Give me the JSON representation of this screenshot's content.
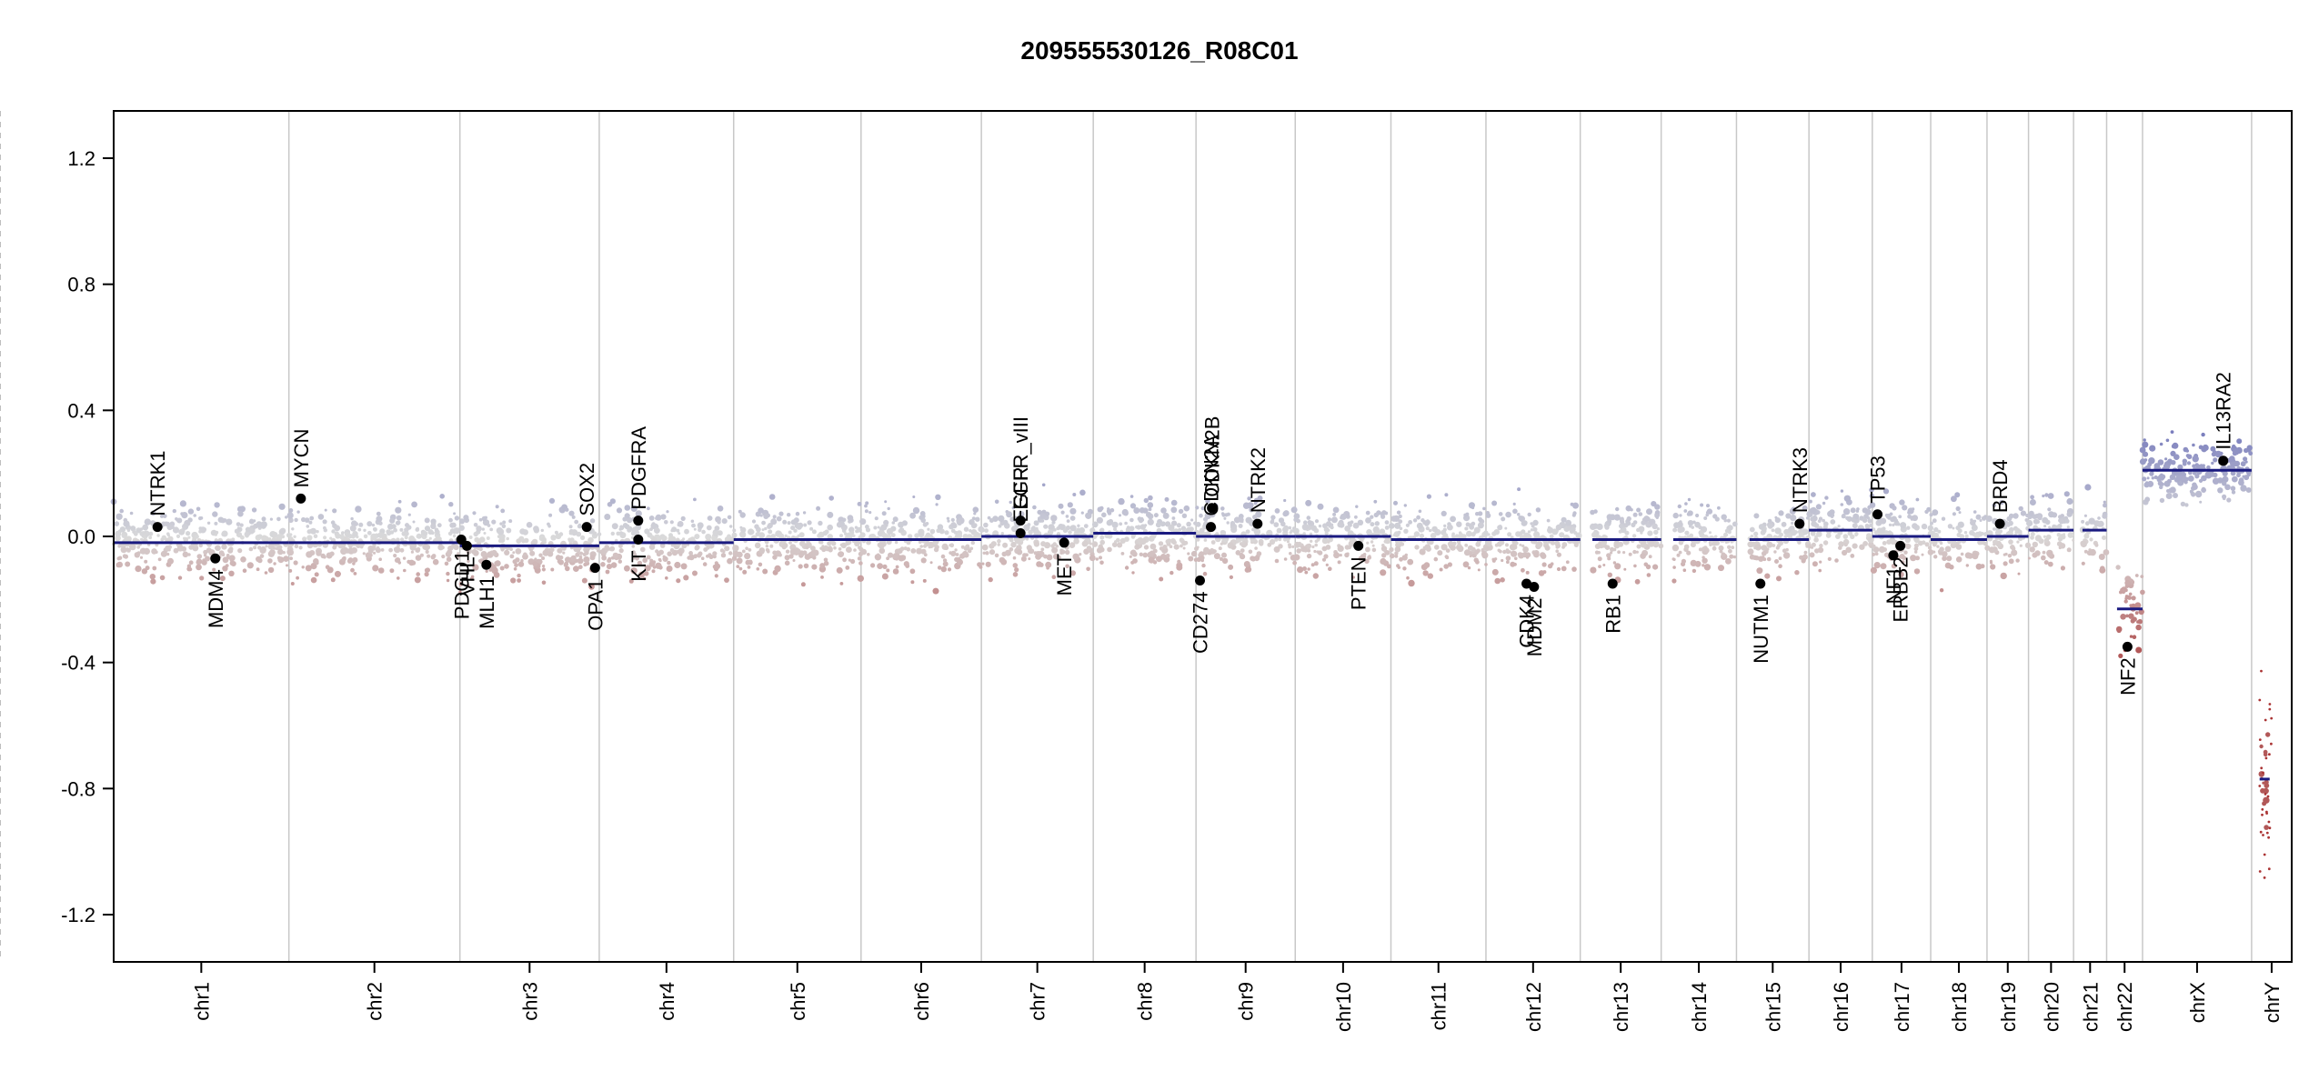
{
  "chart_data": {
    "type": "scatter",
    "title": "209555530126_R08C01",
    "xlabel": "",
    "ylabel": "",
    "ylim": [
      -1.35,
      1.35
    ],
    "y_ticks": [
      1.2,
      0.8,
      0.4,
      0.0,
      -0.4,
      -0.8,
      -1.2
    ],
    "y_tick_labels": [
      "1.2",
      "0.8",
      "0.4",
      "0.0",
      "-0.4",
      "-0.8",
      "-1.2"
    ],
    "colors": {
      "gain": "#8a8cc0",
      "loss": "#b56a6a",
      "neutral": "#d9d9d9",
      "segment": "#1a1a80",
      "gene_point": "#000000",
      "boundary": "#c8c8c8",
      "centromere": "#bdbdbd"
    },
    "chromosomes": [
      {
        "name": "chr1",
        "length": 249,
        "centromere": 0.5
      },
      {
        "name": "chr2",
        "length": 243,
        "centromere": 0.38
      },
      {
        "name": "chr3",
        "length": 198,
        "centromere": 0.46
      },
      {
        "name": "chr4",
        "length": 191,
        "centromere": 0.26
      },
      {
        "name": "chr5",
        "length": 181,
        "centromere": 0.27
      },
      {
        "name": "chr6",
        "length": 171,
        "centromere": 0.35
      },
      {
        "name": "chr7",
        "length": 159,
        "centromere": 0.38
      },
      {
        "name": "chr8",
        "length": 146,
        "centromere": 0.3
      },
      {
        "name": "chr9",
        "length": 141,
        "centromere": 0.35
      },
      {
        "name": "chr10",
        "length": 136,
        "centromere": 0.29
      },
      {
        "name": "chr11",
        "length": 135,
        "centromere": 0.39
      },
      {
        "name": "chr12",
        "length": 134,
        "centromere": 0.27
      },
      {
        "name": "chr13",
        "length": 115,
        "centromere": 0.15
      },
      {
        "name": "chr14",
        "length": 107,
        "centromere": 0.16
      },
      {
        "name": "chr15",
        "length": 103,
        "centromere": 0.18
      },
      {
        "name": "chr16",
        "length": 90,
        "centromere": 0.41
      },
      {
        "name": "chr17",
        "length": 83,
        "centromere": 0.3
      },
      {
        "name": "chr18",
        "length": 80,
        "centromere": 0.22
      },
      {
        "name": "chr19",
        "length": 59,
        "centromere": 0.44
      },
      {
        "name": "chr20",
        "length": 64,
        "centromere": 0.44
      },
      {
        "name": "chr21",
        "length": 47,
        "centromere": 0.27
      },
      {
        "name": "chr22",
        "length": 51,
        "centromere": 0.29
      },
      {
        "name": "chrX",
        "length": 155,
        "centromere": 0.39
      },
      {
        "name": "chrY",
        "length": 57,
        "centromere": 0.18
      }
    ],
    "segments": [
      {
        "chr": "chr1",
        "start": 0.0,
        "end": 1.0,
        "value": -0.02
      },
      {
        "chr": "chr2",
        "start": 0.0,
        "end": 1.0,
        "value": -0.02
      },
      {
        "chr": "chr3",
        "start": 0.0,
        "end": 1.0,
        "value": -0.03
      },
      {
        "chr": "chr4",
        "start": 0.0,
        "end": 1.0,
        "value": -0.02
      },
      {
        "chr": "chr5",
        "start": 0.0,
        "end": 1.0,
        "value": -0.01
      },
      {
        "chr": "chr6",
        "start": 0.0,
        "end": 1.0,
        "value": -0.01
      },
      {
        "chr": "chr7",
        "start": 0.0,
        "end": 1.0,
        "value": 0.0
      },
      {
        "chr": "chr8",
        "start": 0.0,
        "end": 1.0,
        "value": 0.01
      },
      {
        "chr": "chr9",
        "start": 0.0,
        "end": 1.0,
        "value": 0.0
      },
      {
        "chr": "chr10",
        "start": 0.0,
        "end": 1.0,
        "value": 0.0
      },
      {
        "chr": "chr11",
        "start": 0.0,
        "end": 1.0,
        "value": -0.01
      },
      {
        "chr": "chr12",
        "start": 0.0,
        "end": 1.0,
        "value": -0.01
      },
      {
        "chr": "chr13",
        "start": 0.15,
        "end": 1.0,
        "value": -0.01
      },
      {
        "chr": "chr14",
        "start": 0.16,
        "end": 1.0,
        "value": -0.01
      },
      {
        "chr": "chr15",
        "start": 0.18,
        "end": 1.0,
        "value": -0.01
      },
      {
        "chr": "chr16",
        "start": 0.0,
        "end": 1.0,
        "value": 0.02
      },
      {
        "chr": "chr17",
        "start": 0.0,
        "end": 1.0,
        "value": 0.0
      },
      {
        "chr": "chr18",
        "start": 0.0,
        "end": 1.0,
        "value": -0.01
      },
      {
        "chr": "chr19",
        "start": 0.0,
        "end": 1.0,
        "value": 0.0
      },
      {
        "chr": "chr20",
        "start": 0.0,
        "end": 1.0,
        "value": 0.02
      },
      {
        "chr": "chr21",
        "start": 0.27,
        "end": 1.0,
        "value": 0.02
      },
      {
        "chr": "chr22",
        "start": 0.29,
        "end": 1.0,
        "value": -0.23
      },
      {
        "chr": "chrX",
        "start": 0.0,
        "end": 1.0,
        "value": 0.21
      },
      {
        "chr": "chrY",
        "start": 0.2,
        "end": 0.45,
        "value": -0.77
      }
    ],
    "genes": [
      {
        "name": "NTRK1",
        "chr": "chr1",
        "pos": 0.25,
        "value": 0.03,
        "label_side": "above"
      },
      {
        "name": "MDM4",
        "chr": "chr1",
        "pos": 0.58,
        "value": -0.07,
        "label_side": "below"
      },
      {
        "name": "MYCN",
        "chr": "chr2",
        "pos": 0.07,
        "value": 0.12,
        "label_side": "above"
      },
      {
        "name": "PDGD1",
        "chr": "chr3",
        "pos": 0.01,
        "value": -0.01,
        "label_side": "below"
      },
      {
        "name": "VHL",
        "chr": "chr3",
        "pos": 0.05,
        "value": -0.03,
        "label_side": "below"
      },
      {
        "name": "MLH1",
        "chr": "chr3",
        "pos": 0.19,
        "value": -0.09,
        "label_side": "below"
      },
      {
        "name": "SOX2",
        "chr": "chr3",
        "pos": 0.91,
        "value": 0.03,
        "label_side": "above"
      },
      {
        "name": "OPA1",
        "chr": "chr3",
        "pos": 0.97,
        "value": -0.1,
        "label_side": "below"
      },
      {
        "name": "PDGFRA",
        "chr": "chr4",
        "pos": 0.29,
        "value": 0.05,
        "label_side": "above"
      },
      {
        "name": "KIT",
        "chr": "chr4",
        "pos": 0.29,
        "value": -0.01,
        "label_side": "below"
      },
      {
        "name": "EGFR_vIII",
        "chr": "chr7",
        "pos": 0.35,
        "value": 0.05,
        "label_side": "above"
      },
      {
        "name": "EGFR",
        "chr": "chr7",
        "pos": 0.35,
        "value": 0.01,
        "label_side": "above"
      },
      {
        "name": "MET",
        "chr": "chr7",
        "pos": 0.74,
        "value": -0.02,
        "label_side": "below"
      },
      {
        "name": "CDKN2A",
        "chr": "chr9",
        "pos": 0.15,
        "value": 0.03,
        "label_side": "above"
      },
      {
        "name": "CDKN2B",
        "chr": "chr9",
        "pos": 0.16,
        "value": 0.09,
        "label_side": "above"
      },
      {
        "name": "CD274",
        "chr": "chr9",
        "pos": 0.04,
        "value": -0.14,
        "label_side": "below"
      },
      {
        "name": "NTRK2",
        "chr": "chr9",
        "pos": 0.62,
        "value": 0.04,
        "label_side": "above"
      },
      {
        "name": "PTEN",
        "chr": "chr10",
        "pos": 0.66,
        "value": -0.03,
        "label_side": "below"
      },
      {
        "name": "CDK4",
        "chr": "chr12",
        "pos": 0.43,
        "value": -0.15,
        "label_side": "below"
      },
      {
        "name": "MDM2",
        "chr": "chr12",
        "pos": 0.51,
        "value": -0.16,
        "label_side": "below"
      },
      {
        "name": "RB1",
        "chr": "chr13",
        "pos": 0.4,
        "value": -0.15,
        "label_side": "below"
      },
      {
        "name": "NUTM1",
        "chr": "chr15",
        "pos": 0.33,
        "value": -0.15,
        "label_side": "below"
      },
      {
        "name": "NTRK3",
        "chr": "chr15",
        "pos": 0.87,
        "value": 0.04,
        "label_side": "above"
      },
      {
        "name": "TP53",
        "chr": "chr17",
        "pos": 0.09,
        "value": 0.07,
        "label_side": "above"
      },
      {
        "name": "NF1",
        "chr": "chr17",
        "pos": 0.36,
        "value": -0.06,
        "label_side": "below"
      },
      {
        "name": "ERBB2",
        "chr": "chr17",
        "pos": 0.48,
        "value": -0.03,
        "label_side": "below"
      },
      {
        "name": "BRD4",
        "chr": "chr19",
        "pos": 0.31,
        "value": 0.04,
        "label_side": "above"
      },
      {
        "name": "NF2",
        "chr": "chr22",
        "pos": 0.58,
        "value": -0.35,
        "label_side": "below"
      },
      {
        "name": "IL13RA2",
        "chr": "chrX",
        "pos": 0.74,
        "value": 0.24,
        "label_side": "above"
      }
    ]
  }
}
